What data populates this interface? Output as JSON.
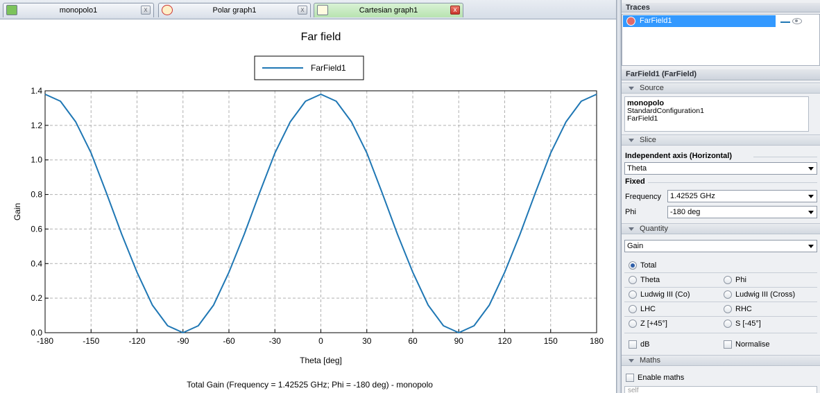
{
  "tabs": [
    {
      "label": "monopolo1",
      "icon": "3d-view-icon",
      "active": false,
      "close": "x"
    },
    {
      "label": "Polar graph1",
      "icon": "polar-graph-icon",
      "active": false,
      "close": "x"
    },
    {
      "label": "Cartesian graph1",
      "icon": "cartesian-graph-icon",
      "active": true,
      "close": "x"
    }
  ],
  "chart_data": {
    "type": "line",
    "title": "Far field",
    "xlabel": "Theta [deg]",
    "ylabel": "Gain",
    "caption": "Total Gain (Frequency = 1.42525 GHz; Phi = -180 deg) - monopolo",
    "xlim": [
      -180,
      180
    ],
    "ylim": [
      0.0,
      1.4
    ],
    "xticks": [
      -180,
      -150,
      -120,
      -90,
      -60,
      -30,
      0,
      30,
      60,
      90,
      120,
      150,
      180
    ],
    "yticks": [
      "0.0",
      "0.2",
      "0.4",
      "0.6",
      "0.8",
      "1.0",
      "1.2",
      "1.4"
    ],
    "grid": true,
    "legend": "top-center",
    "series": [
      {
        "name": "FarField1",
        "color": "#1f77b4",
        "x": [
          -180,
          -170,
          -160,
          -150,
          -140,
          -130,
          -120,
          -110,
          -100,
          -90,
          -80,
          -70,
          -60,
          -50,
          -40,
          -30,
          -20,
          -10,
          0,
          10,
          20,
          30,
          40,
          50,
          60,
          70,
          80,
          90,
          100,
          110,
          120,
          130,
          140,
          150,
          160,
          170,
          180
        ],
        "y": [
          1.38,
          1.34,
          1.22,
          1.04,
          0.81,
          0.57,
          0.35,
          0.16,
          0.04,
          0.0,
          0.04,
          0.16,
          0.35,
          0.57,
          0.81,
          1.04,
          1.22,
          1.34,
          1.38,
          1.34,
          1.22,
          1.04,
          0.81,
          0.57,
          0.35,
          0.16,
          0.04,
          0.0,
          0.04,
          0.16,
          0.35,
          0.57,
          0.81,
          1.04,
          1.22,
          1.34,
          1.38
        ]
      }
    ]
  },
  "panel": {
    "traces_header": "Traces",
    "trace_item": "FarField1",
    "trace_props_header": "FarField1 (FarField)",
    "source_section": "Source",
    "source": {
      "title": "monopolo",
      "line1": "StandardConfiguration1",
      "line2": "FarField1"
    },
    "slice_section": "Slice",
    "independent_axis_label": "Independent axis (Horizontal)",
    "independent_axis_value": "Theta",
    "fixed_label": "Fixed",
    "frequency_label": "Frequency",
    "frequency_value": "1.42525 GHz",
    "phi_label": "Phi",
    "phi_value": "-180 deg",
    "quantity_section": "Quantity",
    "quantity_value": "Gain",
    "options": {
      "total": "Total",
      "theta": "Theta",
      "phi": "Phi",
      "ludwig_co": "Ludwig III (Co)",
      "ludwig_cross": "Ludwig III (Cross)",
      "lhc": "LHC",
      "rhc": "RHC",
      "z45": "Z [+45°]",
      "s45": "S [-45°]"
    },
    "db_label": "dB",
    "normalise_label": "Normalise",
    "maths_section": "Maths",
    "enable_maths_label": "Enable maths",
    "maths_input_value": "self"
  }
}
